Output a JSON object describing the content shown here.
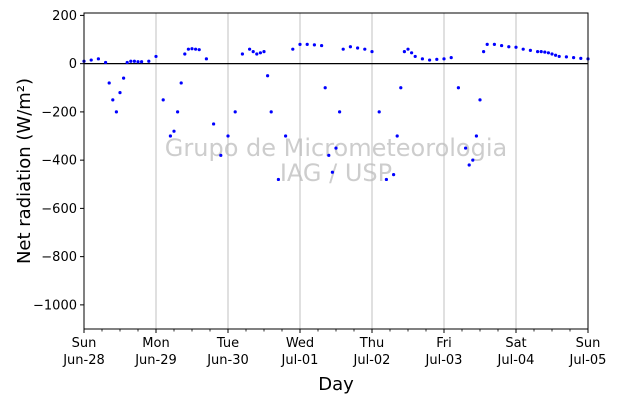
{
  "chart_data": {
    "type": "scatter",
    "xlabel": "Day",
    "ylabel": "Net radiation (W/m²)",
    "ylim": [
      -1100,
      210
    ],
    "xlim": [
      0,
      7
    ],
    "y_ticks": [
      200,
      0,
      -200,
      -400,
      -600,
      -800,
      -1000
    ],
    "y_tick_labels": [
      "200",
      "0",
      "−200",
      "−400",
      "−600",
      "−800",
      "−1000"
    ],
    "x_ticks": [
      {
        "day": "Sun",
        "date": "Jun-28"
      },
      {
        "day": "Mon",
        "date": "Jun-29"
      },
      {
        "day": "Tue",
        "date": "Jun-30"
      },
      {
        "day": "Wed",
        "date": "Jul-01"
      },
      {
        "day": "Thu",
        "date": "Jul-02"
      },
      {
        "day": "Fri",
        "date": "Jul-03"
      },
      {
        "day": "Sat",
        "date": "Jul-04"
      },
      {
        "day": "Sun",
        "date": "Jul-05"
      }
    ],
    "grid": "vertical",
    "zero_line": true,
    "watermark": [
      "Grupo de Micrometeorologia",
      "IAG / USP"
    ],
    "series": [
      {
        "color": "#0000ff",
        "x": [
          0.0,
          0.1,
          0.2,
          0.3,
          0.35,
          0.4,
          0.45,
          0.5,
          0.55,
          0.6,
          0.65,
          0.7,
          0.75,
          0.8,
          0.9,
          1.0,
          1.1,
          1.2,
          1.25,
          1.3,
          1.35,
          1.4,
          1.45,
          1.5,
          1.55,
          1.6,
          1.7,
          1.8,
          1.9,
          2.0,
          2.1,
          2.2,
          2.3,
          2.35,
          2.4,
          2.45,
          2.5,
          2.55,
          2.6,
          2.7,
          2.8,
          2.9,
          3.0,
          3.1,
          3.2,
          3.3,
          3.35,
          3.4,
          3.45,
          3.5,
          3.55,
          3.6,
          3.7,
          3.8,
          3.9,
          4.0,
          4.1,
          4.2,
          4.3,
          4.35,
          4.4,
          4.45,
          4.5,
          4.55,
          4.6,
          4.7,
          4.8,
          4.9,
          5.0,
          5.1,
          5.2,
          5.3,
          5.35,
          5.4,
          5.45,
          5.5,
          5.55,
          5.6,
          5.7,
          5.8,
          5.9,
          6.0,
          6.1,
          6.2,
          6.3,
          6.35,
          6.4,
          6.45,
          6.5,
          6.55,
          6.6,
          6.7,
          6.8,
          6.9,
          7.0
        ],
        "y": [
          10,
          15,
          20,
          5,
          -80,
          -150,
          -200,
          -120,
          -60,
          5,
          10,
          10,
          8,
          8,
          10,
          30,
          -150,
          -300,
          -280,
          -200,
          -80,
          40,
          60,
          62,
          60,
          58,
          20,
          -250,
          -380,
          -300,
          -200,
          40,
          60,
          50,
          40,
          45,
          50,
          -50,
          -200,
          -480,
          -300,
          60,
          80,
          80,
          78,
          75,
          -100,
          -380,
          -450,
          -350,
          -200,
          60,
          70,
          65,
          60,
          50,
          -200,
          -480,
          -460,
          -300,
          -100,
          50,
          60,
          45,
          30,
          20,
          15,
          18,
          20,
          25,
          -100,
          -350,
          -420,
          -400,
          -300,
          -150,
          50,
          80,
          80,
          75,
          70,
          68,
          60,
          55,
          50,
          50,
          48,
          45,
          40,
          35,
          30,
          28,
          25,
          22,
          20
        ]
      }
    ]
  }
}
